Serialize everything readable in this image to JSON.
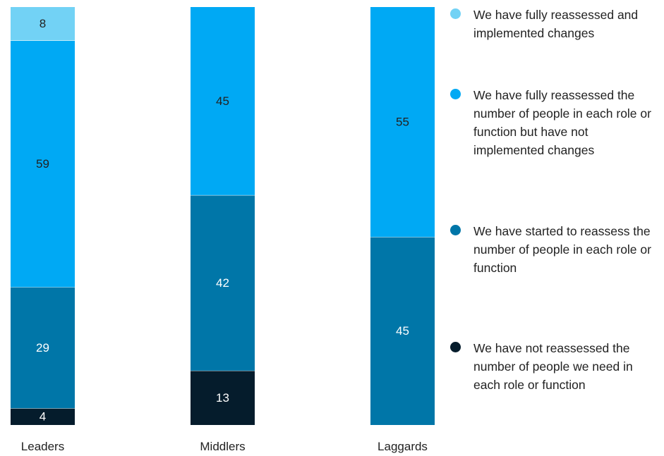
{
  "chart_data": {
    "type": "bar",
    "stacked": true,
    "normalized_to": 100,
    "categories": [
      "Leaders",
      "Middlers",
      "Laggards"
    ],
    "series": [
      {
        "name": "We have not reassessed the number of people we need in each role or function",
        "color": "#051c2c",
        "values": [
          4,
          13,
          0
        ]
      },
      {
        "name": "We have started to reassess the number of people in each role or function",
        "color": "#0076a8",
        "values": [
          29,
          42,
          45
        ]
      },
      {
        "name": "We have fully reassessed the number of people in each role or function but have not implemented changes",
        "color": "#00a9f4",
        "values": [
          59,
          45,
          55
        ]
      },
      {
        "name": "We have fully reassessed and implemented changes",
        "color": "#72d2f5",
        "values": [
          8,
          0,
          0
        ]
      }
    ],
    "label_colors": {
      "#051c2c": "#ffffff",
      "#0076a8": "#ffffff",
      "#00a9f4": "#222222",
      "#72d2f5": "#222222"
    },
    "legend_order": [
      3,
      2,
      1,
      0
    ],
    "legend_position": "right"
  }
}
